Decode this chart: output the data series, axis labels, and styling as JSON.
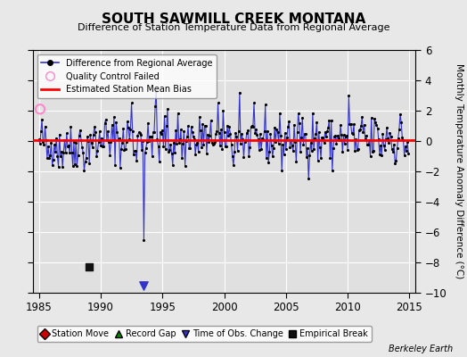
{
  "title": "SOUTH SAWMILL CREEK MONTANA",
  "subtitle": "Difference of Station Temperature Data from Regional Average",
  "ylabel": "Monthly Temperature Anomaly Difference (°C)",
  "xlim": [
    1984.5,
    2015.5
  ],
  "ylim": [
    -10,
    6
  ],
  "yticks": [
    -10,
    -8,
    -6,
    -4,
    -2,
    0,
    2,
    4,
    6
  ],
  "xticks": [
    1985,
    1990,
    1995,
    2000,
    2005,
    2010,
    2015
  ],
  "bg_color": "#e8e8e8",
  "plot_bg_color": "#e0e0e0",
  "line_color": "#3333cc",
  "dot_color": "#000000",
  "bias_color": "#ff0000",
  "bias_value": 0.05,
  "empirical_break_x": 1989.08,
  "empirical_break_y": -8.3,
  "time_of_obs_change_x": 1993.5,
  "qc_fail_x": 1985.1,
  "qc_fail_y": 2.1,
  "spike_x": 1993.5,
  "spike_y": -6.5,
  "seed": 42
}
